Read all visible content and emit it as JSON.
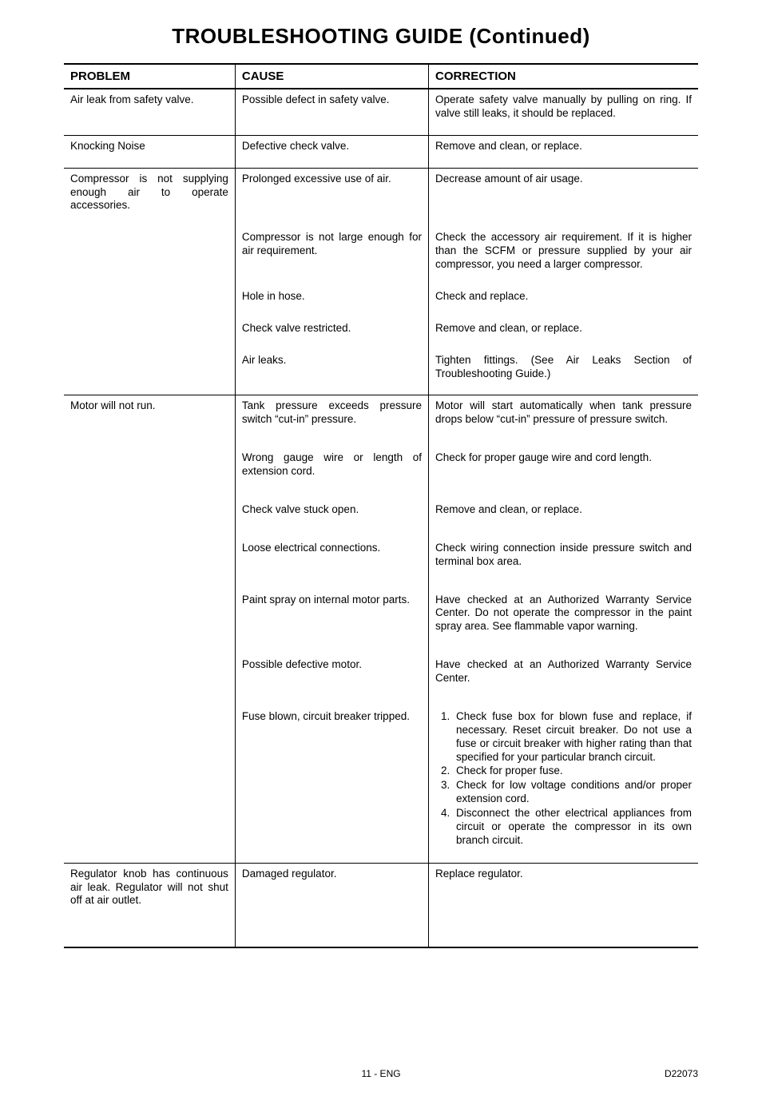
{
  "title": "TROUBLESHOOTING GUIDE (Continued)",
  "headers": {
    "problem": "PROBLEM",
    "cause": "CAUSE",
    "correction": "CORRECTION"
  },
  "sections": [
    {
      "problem": "Air leak from safety valve.",
      "rows": [
        {
          "cause": "Possible defect in safety valve.",
          "correction": "Operate safety valve manually by pulling on ring.  If valve still leaks, it should be replaced."
        }
      ]
    },
    {
      "problem": "Knocking Noise",
      "rows": [
        {
          "cause": "Defective check valve.",
          "correction": "Remove and clean, or replace."
        }
      ]
    },
    {
      "problem": "Compressor is not supplying enough air to operate accessories.",
      "rows": [
        {
          "cause": "Prolonged excessive use of air.",
          "correction": "Decrease amount of air usage."
        },
        {
          "cause": "Compressor is not large enough for air requirement.",
          "correction": "Check the accessory air requirement.  If it is higher than the SCFM or pressure supplied by your air compressor, you need a larger compressor."
        },
        {
          "cause": "Hole in hose.",
          "correction": "Check and replace."
        },
        {
          "cause": "Check valve restricted.",
          "correction": "Remove and clean, or replace."
        },
        {
          "cause": "Air leaks.",
          "correction": "Tighten fittings.  (See Air Leaks Section of Troubleshooting Guide.)"
        }
      ]
    },
    {
      "problem": "Motor will not run.",
      "rows": [
        {
          "cause": "Tank pressure exceeds pressure switch “cut-in” pressure.",
          "correction": "Motor will start automatically when tank pressure drops below “cut-in” pressure of pressure switch."
        },
        {
          "cause": "Wrong gauge wire or length of extension cord.",
          "correction": "Check for proper gauge wire and cord length."
        },
        {
          "cause": "Check valve stuck open.",
          "correction": "Remove and clean, or replace."
        },
        {
          "cause": "Loose electrical connections.",
          "correction": "Check wiring connection inside pressure switch and terminal box area."
        },
        {
          "cause": "Paint spray on internal motor parts.",
          "correction": "Have checked at an Authorized Warranty Service Center.  Do not operate the compressor in the paint spray area.  See flammable vapor warning."
        },
        {
          "cause": "Possible defective motor.",
          "correction": "Have checked at an Authorized Warranty Service Center."
        },
        {
          "cause": "Fuse blown, circuit breaker tripped.",
          "correction_list": [
            "Check fuse box for blown fuse and replace, if necessary.  Reset circuit breaker. Do not use a fuse or circuit breaker with higher rating than that specified for your particular branch circuit.",
            "Check for proper fuse.",
            "Check for low voltage conditions and/or proper extension cord.",
            "Disconnect the other electrical appliances from circuit or operate the compressor in its own branch circuit."
          ]
        }
      ]
    },
    {
      "problem": "Regulator knob has continuous air leak. Regulator will not shut off at air outlet.",
      "rows": [
        {
          "cause": "Damaged regulator.",
          "correction": "Replace regulator."
        }
      ]
    }
  ],
  "footer": {
    "center": "11 - ENG",
    "right": "D22073"
  },
  "colors": {
    "text": "#000000",
    "background": "#ffffff",
    "border": "#000000"
  },
  "typography": {
    "title_fontsize": 26,
    "header_fontsize": 15,
    "body_fontsize": 13.5,
    "footer_fontsize": 12,
    "font_family": "Arial, Helvetica, sans-serif"
  }
}
